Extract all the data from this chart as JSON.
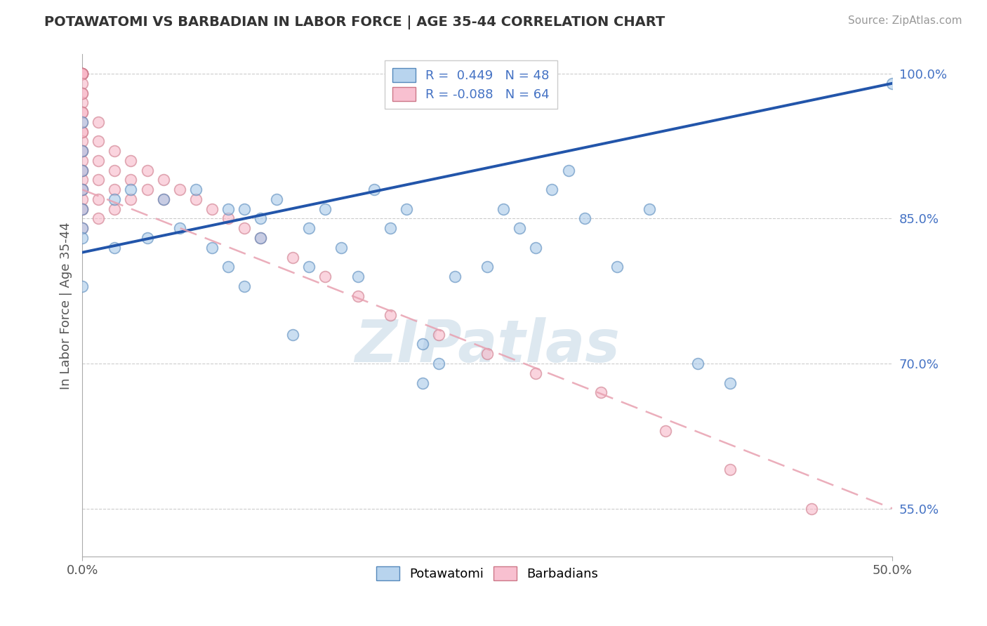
{
  "title": "POTAWATOMI VS BARBADIAN IN LABOR FORCE | AGE 35-44 CORRELATION CHART",
  "source": "Source: ZipAtlas.com",
  "ylabel": "In Labor Force | Age 35-44",
  "xlim": [
    0.0,
    0.5
  ],
  "ylim": [
    0.5,
    1.02
  ],
  "yticks": [
    0.55,
    0.7,
    0.85,
    1.0
  ],
  "ytick_labels": [
    "55.0%",
    "70.0%",
    "85.0%",
    "100.0%"
  ],
  "xticks": [
    0.0,
    0.5
  ],
  "xtick_labels": [
    "0.0%",
    "50.0%"
  ],
  "blue_color": "#a8c8e8",
  "blue_edge_color": "#5588bb",
  "pink_color": "#f8b8c8",
  "pink_edge_color": "#cc7788",
  "blue_line_color": "#2255aa",
  "pink_dash_color": "#e8a0b0",
  "watermark_color": "#dde8f0",
  "potawatomi_x": [
    0.0,
    0.0,
    0.0,
    0.0,
    0.0,
    0.0,
    0.0,
    0.0,
    0.02,
    0.02,
    0.03,
    0.04,
    0.05,
    0.06,
    0.07,
    0.08,
    0.09,
    0.09,
    0.1,
    0.1,
    0.11,
    0.11,
    0.12,
    0.13,
    0.14,
    0.14,
    0.15,
    0.16,
    0.17,
    0.18,
    0.19,
    0.2,
    0.21,
    0.21,
    0.22,
    0.23,
    0.25,
    0.26,
    0.27,
    0.28,
    0.29,
    0.3,
    0.31,
    0.33,
    0.35,
    0.38,
    0.4,
    0.5
  ],
  "potawatomi_y": [
    0.84,
    0.86,
    0.88,
    0.9,
    0.92,
    0.83,
    0.78,
    0.95,
    0.87,
    0.82,
    0.88,
    0.83,
    0.87,
    0.84,
    0.88,
    0.82,
    0.86,
    0.8,
    0.86,
    0.78,
    0.83,
    0.85,
    0.87,
    0.73,
    0.84,
    0.8,
    0.86,
    0.82,
    0.79,
    0.88,
    0.84,
    0.86,
    0.68,
    0.72,
    0.7,
    0.79,
    0.8,
    0.86,
    0.84,
    0.82,
    0.88,
    0.9,
    0.85,
    0.8,
    0.86,
    0.7,
    0.68,
    0.99
  ],
  "barbadian_x": [
    0.0,
    0.0,
    0.0,
    0.0,
    0.0,
    0.0,
    0.0,
    0.0,
    0.0,
    0.0,
    0.0,
    0.0,
    0.0,
    0.0,
    0.0,
    0.0,
    0.0,
    0.0,
    0.0,
    0.0,
    0.0,
    0.0,
    0.0,
    0.0,
    0.0,
    0.0,
    0.0,
    0.0,
    0.0,
    0.0,
    0.01,
    0.01,
    0.01,
    0.01,
    0.01,
    0.01,
    0.02,
    0.02,
    0.02,
    0.02,
    0.03,
    0.03,
    0.03,
    0.04,
    0.04,
    0.05,
    0.05,
    0.06,
    0.07,
    0.08,
    0.09,
    0.1,
    0.11,
    0.13,
    0.15,
    0.17,
    0.19,
    0.22,
    0.25,
    0.28,
    0.32,
    0.36,
    0.4,
    0.45
  ],
  "barbadian_y": [
    1.0,
    1.0,
    1.0,
    1.0,
    1.0,
    1.0,
    1.0,
    1.0,
    0.99,
    0.98,
    0.97,
    0.96,
    0.95,
    0.94,
    0.93,
    0.92,
    0.91,
    0.9,
    0.89,
    0.88,
    0.87,
    0.86,
    0.98,
    0.96,
    0.94,
    0.92,
    0.9,
    0.88,
    0.86,
    0.84,
    0.95,
    0.93,
    0.91,
    0.89,
    0.87,
    0.85,
    0.92,
    0.9,
    0.88,
    0.86,
    0.91,
    0.89,
    0.87,
    0.9,
    0.88,
    0.89,
    0.87,
    0.88,
    0.87,
    0.86,
    0.85,
    0.84,
    0.83,
    0.81,
    0.79,
    0.77,
    0.75,
    0.73,
    0.71,
    0.69,
    0.67,
    0.63,
    0.59,
    0.55
  ]
}
